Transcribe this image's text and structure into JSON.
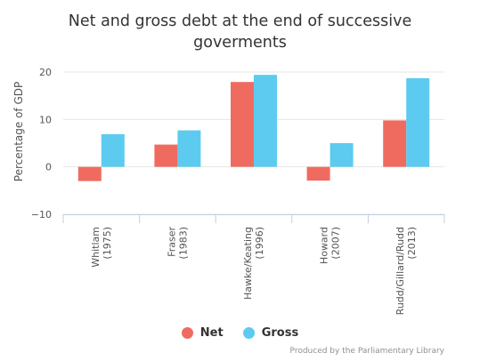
{
  "colors": {
    "net": "#f06b5f",
    "gross": "#5ccbef",
    "grid": "#e6e6e6",
    "axis": "#c0d0e0",
    "text": "#555555"
  },
  "credit": "Produced by the Parliamentary Library",
  "chart_data": {
    "type": "bar",
    "title": "Net and gross debt at the end of successive goverments",
    "ylabel": "Percentage of GDP",
    "xlabel": "",
    "ylim": [
      -10,
      20
    ],
    "yticks": [
      -10,
      0,
      10,
      20
    ],
    "ytick_labels": [
      "−10",
      "0",
      "10",
      "20"
    ],
    "grid": true,
    "legend": "bottom",
    "categories": [
      [
        "Whitlam",
        "(1975)"
      ],
      [
        "Fraser",
        "(1983)"
      ],
      [
        "Hawke/Keating",
        "(1996)"
      ],
      [
        "Howard",
        "(2007)"
      ],
      [
        "Rudd/Gillard/Rudd",
        "(2013)"
      ]
    ],
    "series": [
      {
        "name": "Net",
        "color": "#f06b5f",
        "values": [
          -3.0,
          4.7,
          17.9,
          -2.9,
          9.8
        ]
      },
      {
        "name": "Gross",
        "color": "#5ccbef",
        "values": [
          6.9,
          7.7,
          19.4,
          5.0,
          18.7
        ]
      }
    ]
  }
}
